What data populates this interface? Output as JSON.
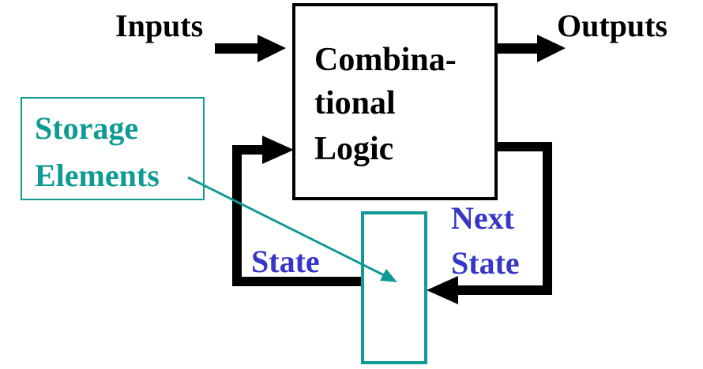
{
  "labels": {
    "inputs": "Inputs",
    "outputs": "Outputs",
    "logic_line1": "Combina-",
    "logic_line2": "tional",
    "logic_line3": "Logic",
    "storage_line1": "Storage",
    "storage_line2": "Elements",
    "next_line1": "Next",
    "next_line2": "State",
    "state": "State"
  },
  "colors": {
    "ink": "#000000",
    "teal": "#0f9a94",
    "blue": "#3636c8",
    "background": "#ffffff"
  }
}
